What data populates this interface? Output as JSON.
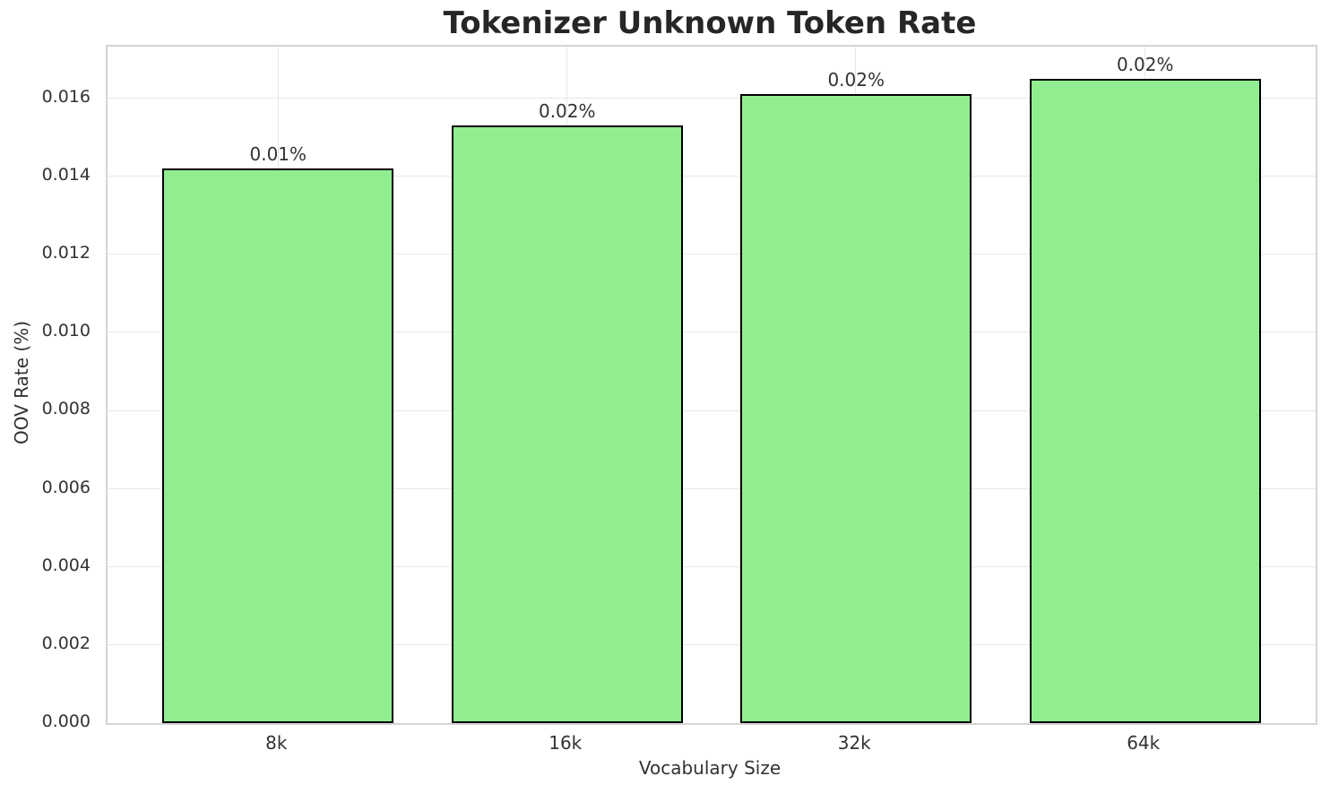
{
  "chart_data": {
    "type": "bar",
    "title": "Tokenizer Unknown Token Rate",
    "xlabel": "Vocabulary Size",
    "ylabel": "OOV Rate (%)",
    "categories": [
      "8k",
      "16k",
      "32k",
      "64k"
    ],
    "values": [
      0.0142,
      0.0153,
      0.0161,
      0.0165
    ],
    "bar_labels": [
      "0.01%",
      "0.02%",
      "0.02%",
      "0.02%"
    ],
    "ytick_values": [
      0.0,
      0.002,
      0.004,
      0.006,
      0.008,
      0.01,
      0.012,
      0.014,
      0.016
    ],
    "ytick_labels": [
      "0.000",
      "0.002",
      "0.004",
      "0.006",
      "0.008",
      "0.010",
      "0.012",
      "0.014",
      "0.016"
    ],
    "ylim": [
      0,
      0.017325
    ],
    "xlim": [
      -0.59,
      3.59
    ],
    "bar_width_units": 0.8,
    "grid": true,
    "legend": "none",
    "colors": {
      "bar_fill": "#90EE90",
      "bar_edge": "#000000",
      "grid": "#e7e7e7",
      "spine": "#d4d4d4",
      "title_text": "#262626",
      "tick_text": "#333333",
      "background": "#ffffff"
    }
  }
}
